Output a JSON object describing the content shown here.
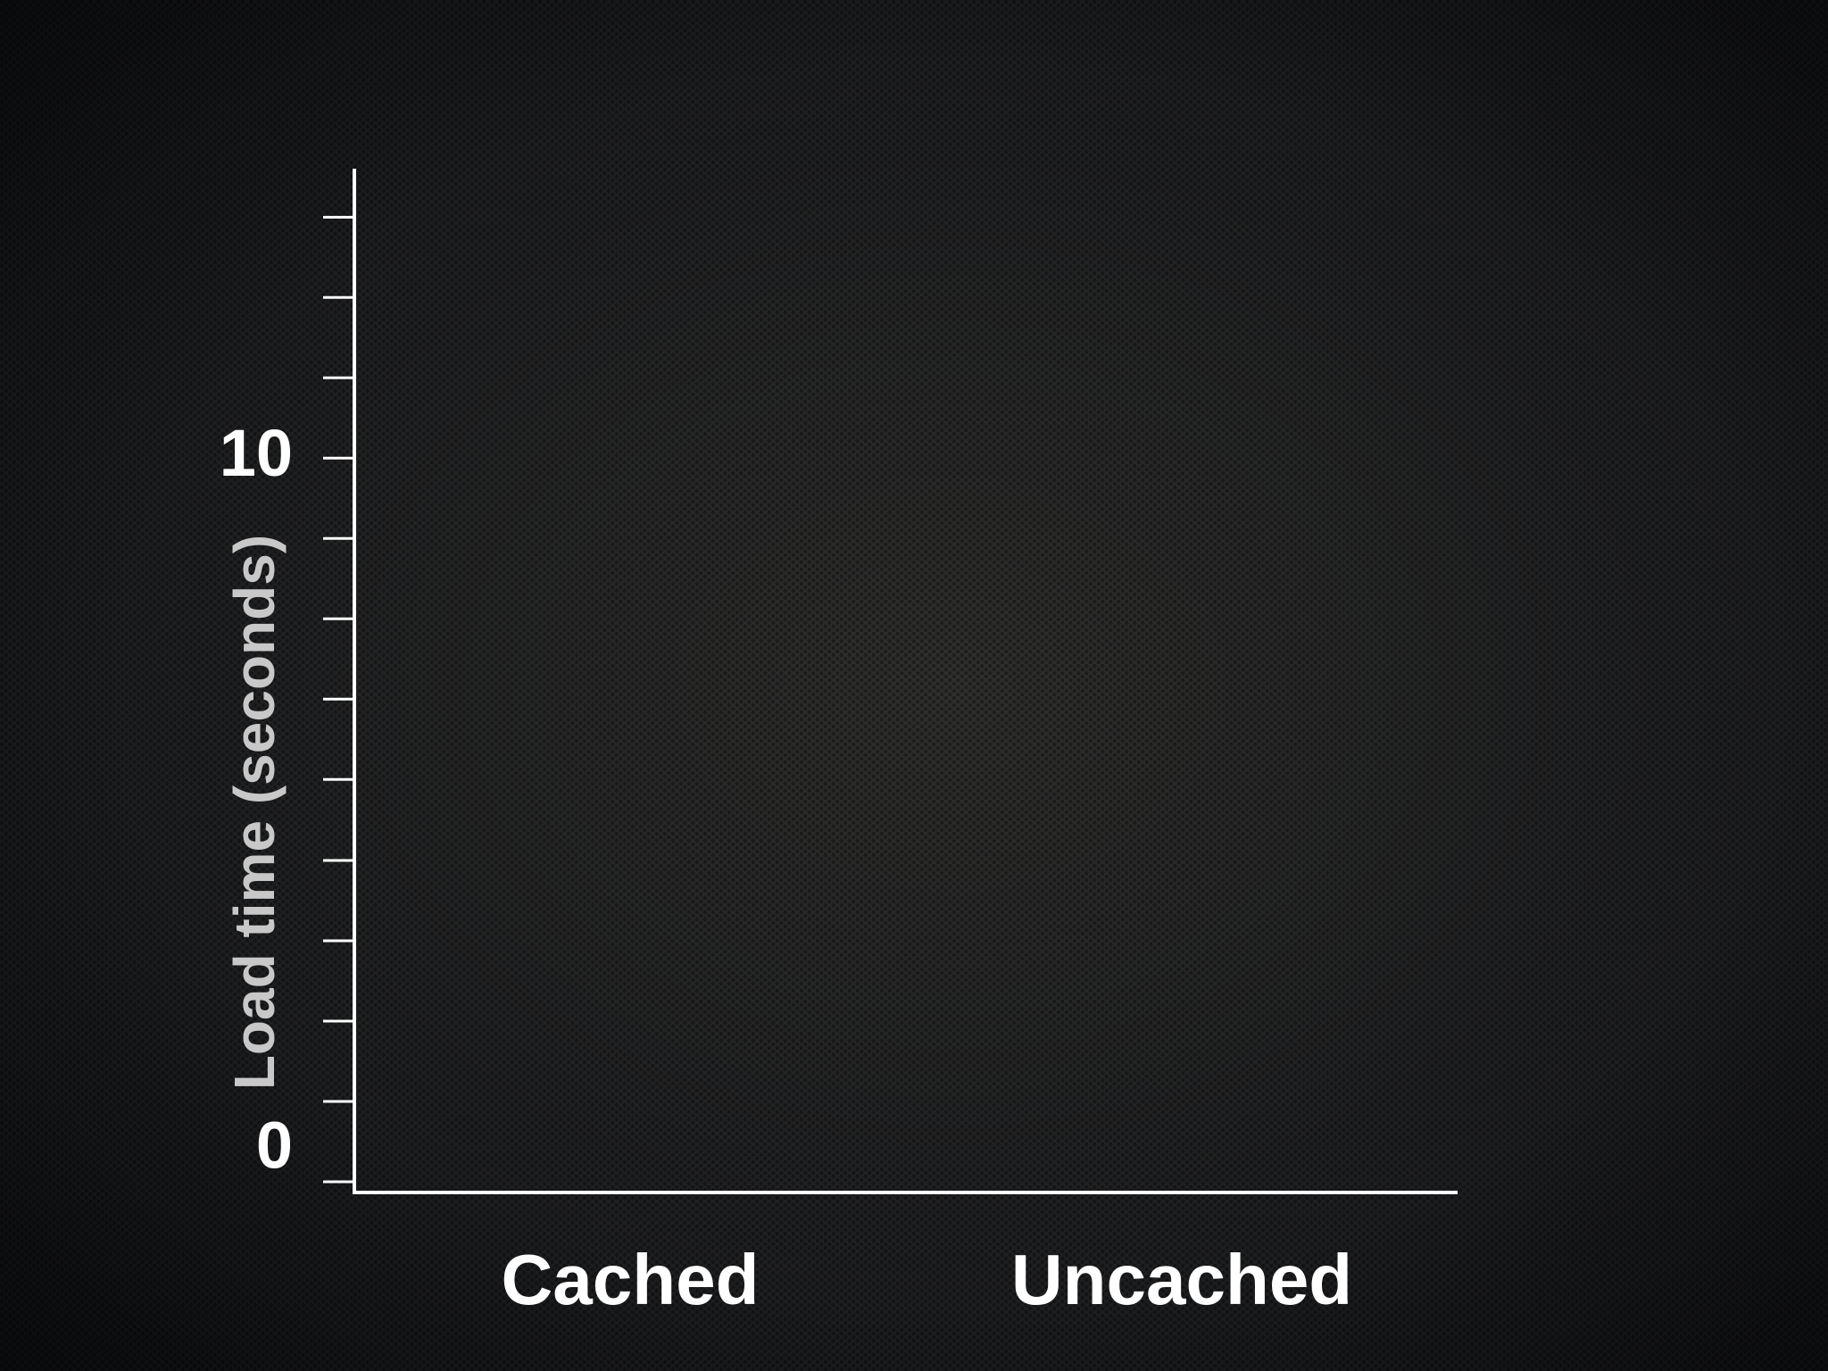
{
  "chart_data": {
    "type": "bar",
    "y_label": "Load time (seconds)",
    "categories": [
      "Cached",
      "Uncached"
    ],
    "ylim": [
      0,
      14
    ],
    "yticks": [
      0,
      10
    ],
    "yminorticks": [
      1.11,
      2.22,
      3.33,
      4.44,
      5.56,
      6.67,
      7.78,
      8.89,
      11.11,
      12.22,
      13.33
    ],
    "color": "#ffffff"
  }
}
